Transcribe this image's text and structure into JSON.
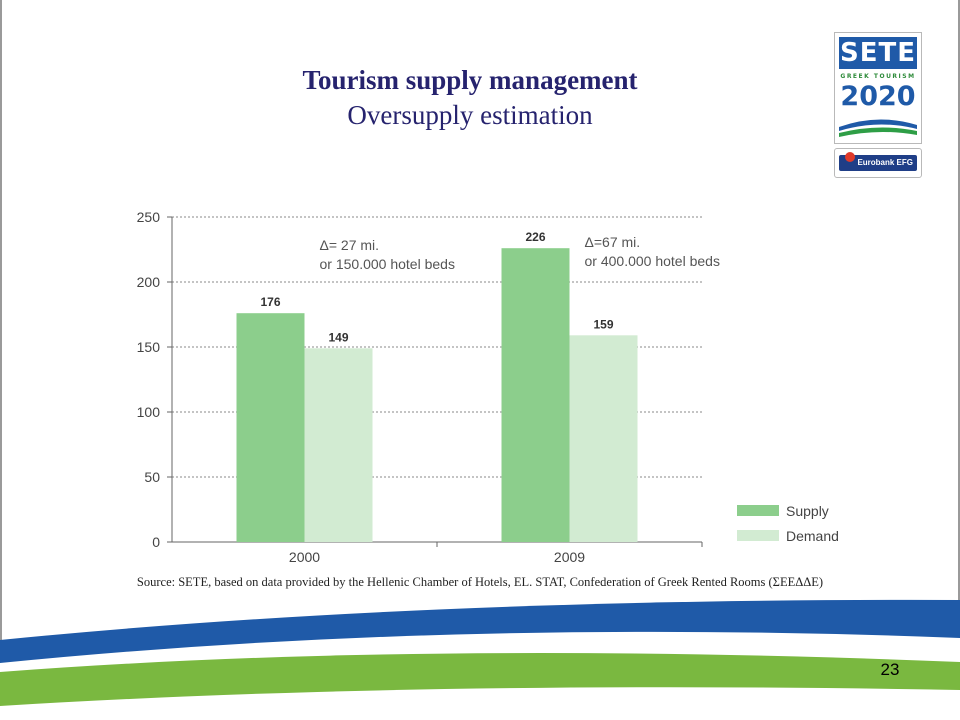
{
  "slide": {
    "title": "Tourism supply management",
    "subtitle": "Oversupply estimation",
    "source": "Source: SETE, based on data provided by the Hellenic Chamber of Hotels, EL. STAT, Confederation of Greek Rented Rooms (ΣΕΕΔΔΕ)",
    "page_number": "23"
  },
  "logo": {
    "brand": "SETE",
    "tagline": "GREEK TOURISM",
    "year": "2020",
    "sponsor": "Eurobank EFG"
  },
  "colors": {
    "title": "#26236e",
    "supply": "#8cce8c",
    "demand": "#d2ebd2",
    "logo_blue": "#1f5aa8",
    "footer_blue": "#1f5aa8",
    "footer_green": "#7ab840"
  },
  "chart_data": {
    "type": "bar",
    "categories": [
      "2000",
      "2009"
    ],
    "series": [
      {
        "name": "Supply",
        "values": [
          176,
          226
        ]
      },
      {
        "name": "Demand",
        "values": [
          149,
          159
        ]
      }
    ],
    "data_labels": [
      [
        "176",
        "149"
      ],
      [
        "226",
        "159"
      ]
    ],
    "annotations": [
      {
        "category": "2000",
        "line1": "Δ= 27 mi.",
        "line2": "or 150.000 hotel beds"
      },
      {
        "category": "2009",
        "line1": "Δ=67 mi.",
        "line2": "or 400.000 hotel beds"
      }
    ],
    "yticks": [
      "0",
      "50",
      "100",
      "150",
      "200",
      "250"
    ],
    "ylim": [
      0,
      250
    ],
    "grid": true,
    "legend_position": "bottom-right"
  }
}
